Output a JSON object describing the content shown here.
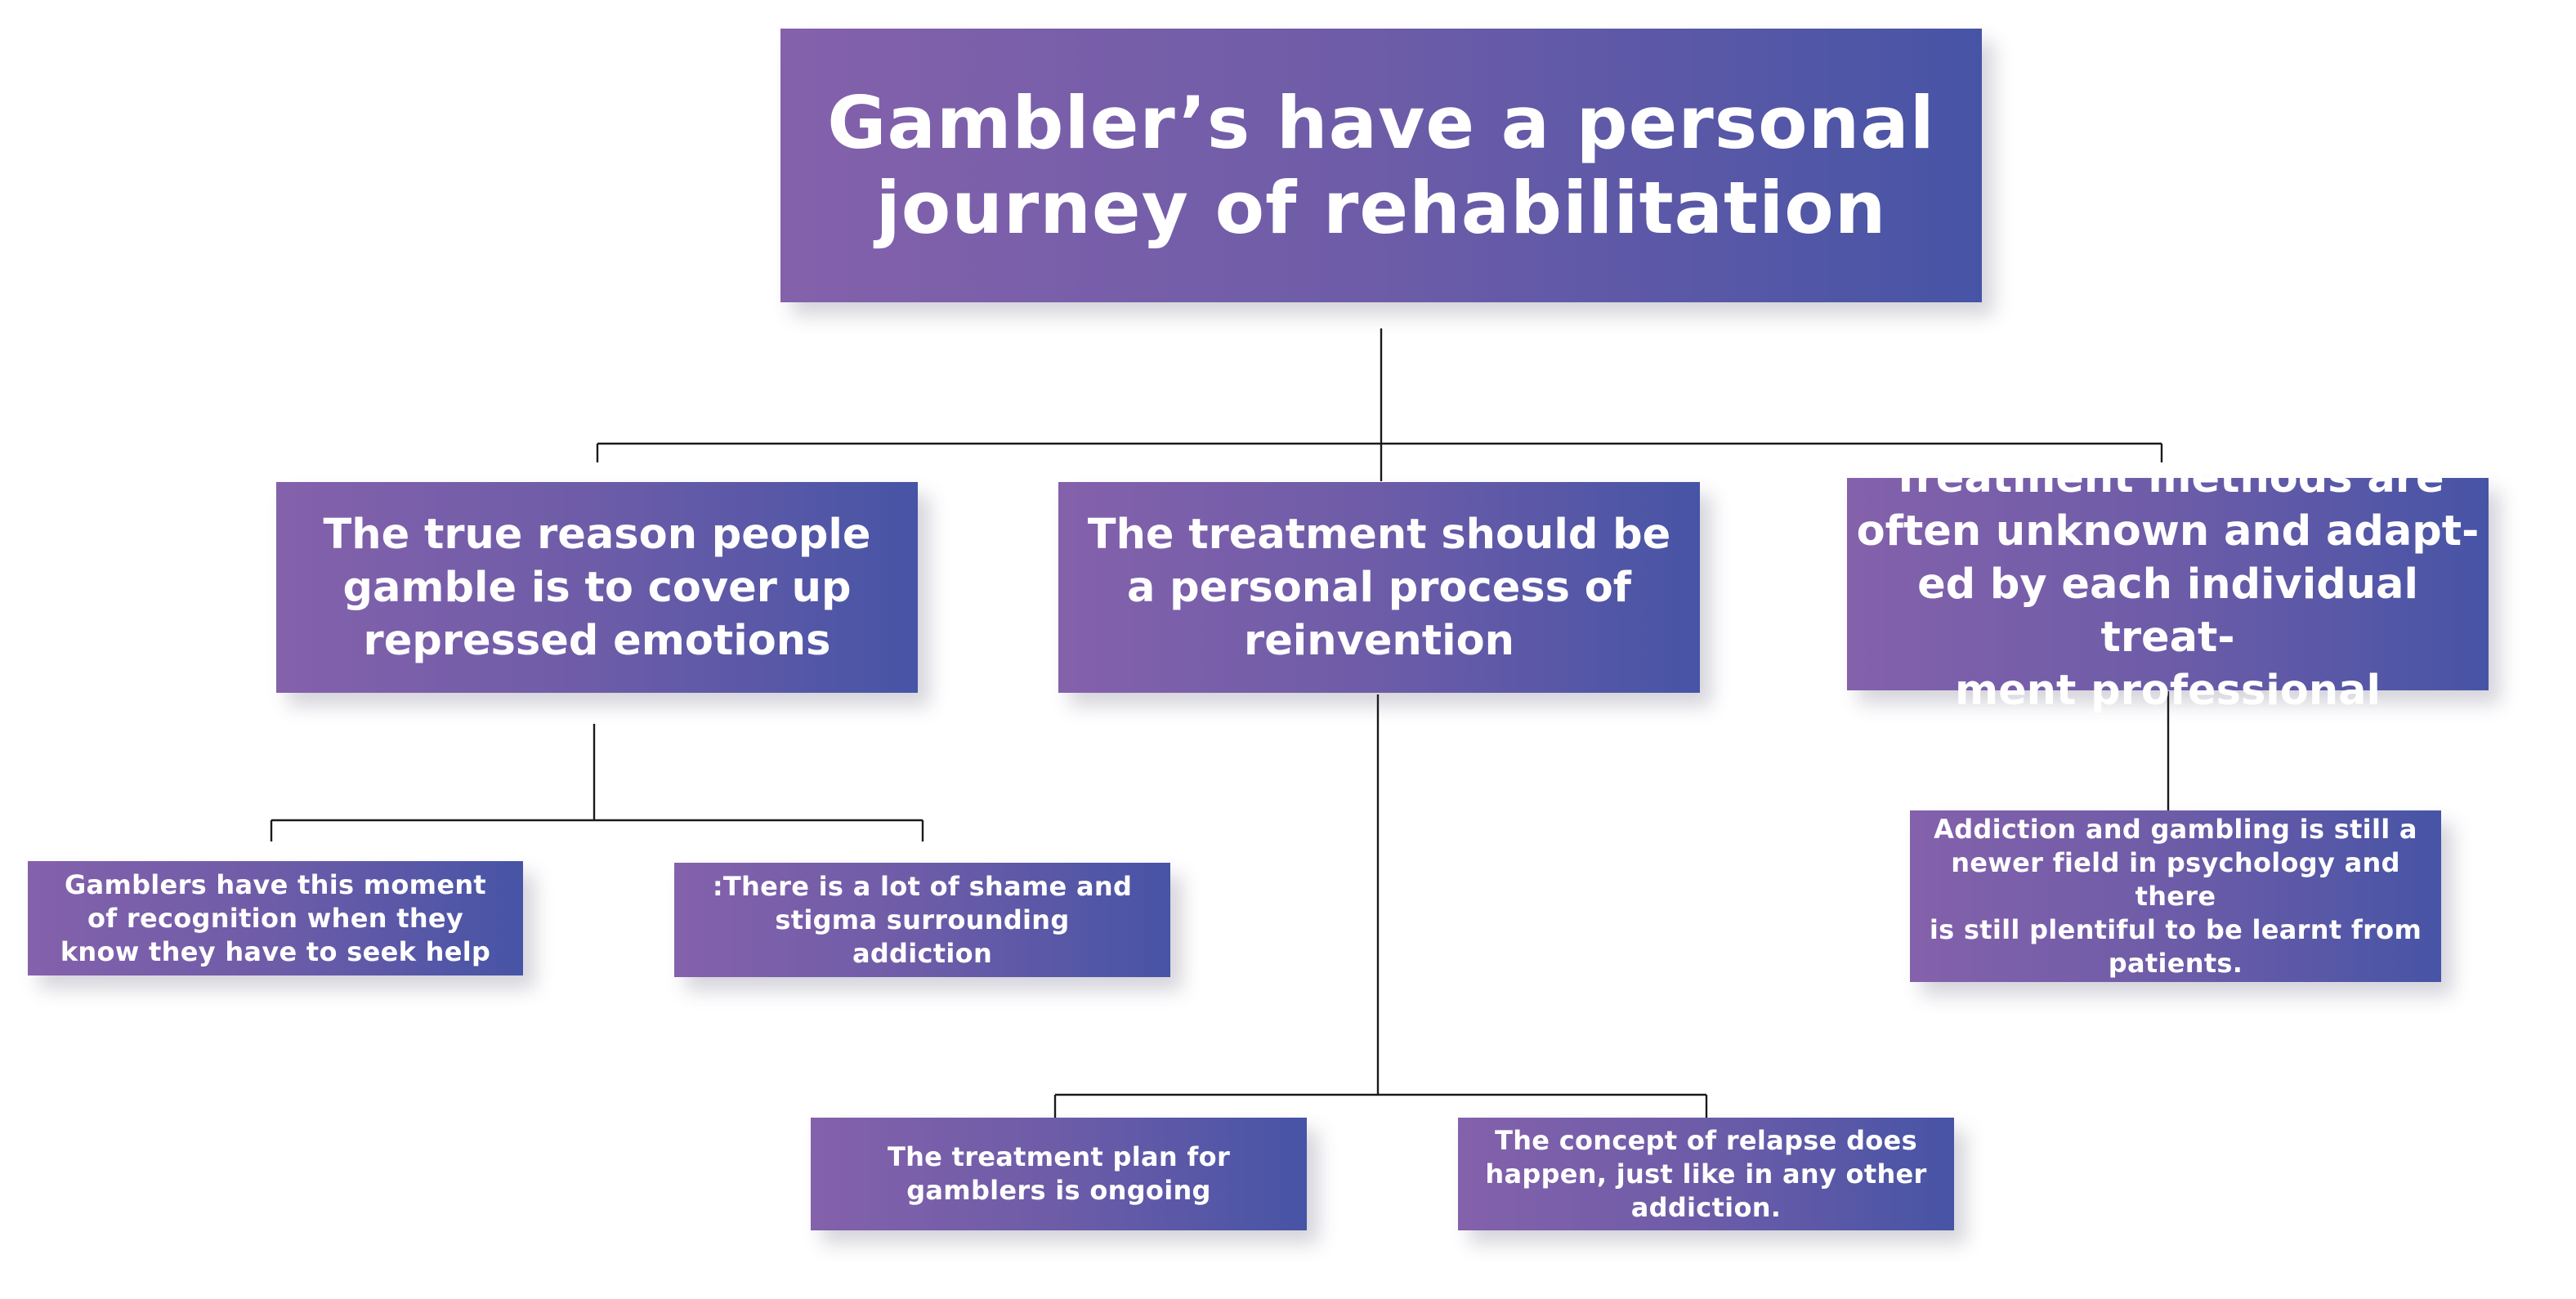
{
  "root": {
    "text": "Gambler’s have a personal\njourney of rehabilitation"
  },
  "branches": [
    {
      "text": "The true reason  people\ngamble is to cover up\nrepressed emotions",
      "children": [
        "Gamblers have this moment\nof recognition when they\nknow they have to seek help",
        ":There is a lot of shame and\nstigma surrounding\naddiction"
      ]
    },
    {
      "text": "The treatment should be\na personal process of\nreinvention",
      "children": [
        "The treatment plan for\ngamblers is ongoing",
        "The concept of relapse does\nhappen, just like in any other\naddiction."
      ]
    },
    {
      "text": "Treatment methods are\noften unknown and adapt-\ned by each individual treat-\nment professional",
      "children": [
        "Addiction and gambling is still a\nnewer field in psychology and there\nis still plentiful to be learnt from\npatients."
      ]
    }
  ],
  "colors": {
    "gradient_start": "#8461ab",
    "gradient_end": "#4754a6",
    "connector": "#1a1a1a",
    "text": "#ffffff"
  }
}
